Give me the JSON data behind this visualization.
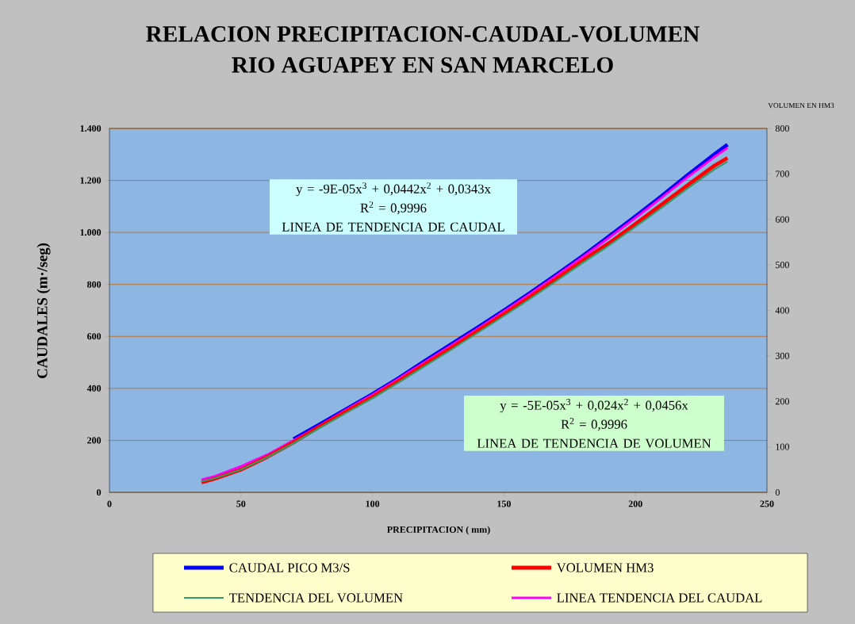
{
  "chart_data": {
    "type": "line",
    "title": "RELACION PRECIPITACION-CAUDAL-VOLUMEN",
    "subtitle": "RIO AGUAPEY EN  SAN MARCELO",
    "xlabel": "PRECIPITACION ( mm)",
    "ylabel": "CAUDALES (m·/seg)",
    "y2label": "VOLUMEN EN HM3",
    "x": [
      35,
      40,
      50,
      60,
      70,
      80,
      90,
      100,
      110,
      120,
      130,
      140,
      150,
      160,
      170,
      180,
      190,
      200,
      210,
      220,
      230,
      235
    ],
    "series": [
      {
        "name": "CAUDAL PICO M3/S",
        "color": "#0000ff",
        "values": [
          null,
          null,
          null,
          null,
          205,
          262,
          320,
          378,
          440,
          506,
          570,
          634,
          700,
          768,
          838,
          910,
          985,
          1062,
          1140,
          1222,
          1300,
          1338
        ]
      },
      {
        "name": "VOLUMEN HM3",
        "color": "#ff0000",
        "axis": "y2",
        "values": [
          22,
          30,
          50,
          78,
          110,
          145,
          178,
          210,
          245,
          282,
          318,
          355,
          392,
          430,
          470,
          510,
          548,
          590,
          633,
          676,
          718,
          735
        ]
      },
      {
        "name": "TENDENCIA DEL VOLUMEN",
        "color": "#339966",
        "axis": "y2",
        "values": [
          24,
          31,
          50,
          77,
          108,
          142,
          175,
          207,
          242,
          278,
          314,
          351,
          388,
          426,
          465,
          505,
          543,
          584,
          626,
          669,
          710,
          727
        ]
      },
      {
        "name": "LINEA TENDENCIA DEL CAUDAL",
        "color": "#ff00ff",
        "values": [
          49,
          62,
          100,
          145,
          200,
          258,
          318,
          376,
          438,
          502,
          566,
          630,
          696,
          764,
          834,
          906,
          980,
          1056,
          1134,
          1214,
          1290,
          1325
        ]
      }
    ],
    "xlim": [
      0,
      250
    ],
    "xticks": [
      0,
      50,
      100,
      150,
      200,
      250
    ],
    "ylim": [
      0,
      1400
    ],
    "yticks": [
      0,
      200,
      400,
      600,
      800,
      {
        "value": 1000,
        "label": "1.000"
      },
      {
        "value": 1200,
        "label": "1.200"
      },
      {
        "value": 1400,
        "label": "1.400"
      }
    ],
    "y2lim": [
      0,
      800
    ],
    "y2ticks": [
      0,
      100,
      200,
      300,
      400,
      500,
      600,
      700,
      800
    ],
    "grid": "y",
    "legend": "bottom",
    "marker": "none",
    "line_style": "solid",
    "annotations": [
      "y = -9E-05x$^{3}$ + 0,0442x$^{2}$ + 0,0343x",
      "R$^{2}$ = 0,9996",
      "LINEA DE TENDENCIA DE CAUDAL",
      "y = -5E-05x$^{3}$ + 0,024x$^{2}$ + 0,0456x",
      "R$^{2}$ = 0,9996",
      "LINEA DE TENDENCIA DE VOLUMEN"
    ]
  }
}
